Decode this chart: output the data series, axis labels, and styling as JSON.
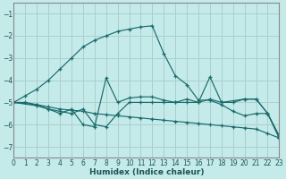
{
  "xlabel": "Humidex (Indice chaleur)",
  "bg_color": "#c5eaea",
  "grid_color": "#aacfcf",
  "line_color": "#1a6b6b",
  "xlim": [
    0,
    23
  ],
  "ylim": [
    -7.5,
    -0.5
  ],
  "yticks": [
    -7,
    -6,
    -5,
    -4,
    -3,
    -2,
    -1
  ],
  "xticks": [
    0,
    1,
    2,
    3,
    4,
    5,
    6,
    7,
    8,
    9,
    10,
    11,
    12,
    13,
    14,
    15,
    16,
    17,
    18,
    19,
    20,
    21,
    22,
    23
  ],
  "curve1_x": [
    0,
    1,
    2,
    3,
    4,
    5,
    6,
    7,
    8,
    9,
    10,
    11,
    12,
    13,
    14,
    15,
    16,
    17,
    18,
    19,
    20,
    21,
    22,
    23
  ],
  "curve1_y": [
    -5.0,
    -4.7,
    -4.4,
    -4.0,
    -3.5,
    -3.0,
    -2.5,
    -2.2,
    -2.0,
    -1.8,
    -1.7,
    -1.6,
    -1.55,
    -2.8,
    -3.8,
    -4.2,
    -4.9,
    -4.9,
    -5.1,
    -5.4,
    -5.6,
    -5.5,
    -5.5,
    -6.5
  ],
  "curve2_x": [
    0,
    1,
    2,
    3,
    4,
    5,
    6,
    7,
    8,
    9,
    10,
    11,
    12,
    13,
    14,
    15,
    16,
    17,
    18,
    19,
    20,
    21,
    22,
    23
  ],
  "curve2_y": [
    -5.0,
    -5.0,
    -5.1,
    -5.2,
    -5.3,
    -5.35,
    -5.4,
    -5.5,
    -5.55,
    -5.6,
    -5.65,
    -5.7,
    -5.75,
    -5.8,
    -5.85,
    -5.9,
    -5.95,
    -6.0,
    -6.05,
    -6.1,
    -6.15,
    -6.2,
    -6.4,
    -6.6
  ],
  "curve3_x": [
    0,
    2,
    3,
    4,
    5,
    6,
    7,
    8,
    9,
    10,
    11,
    12,
    13,
    14,
    15,
    16,
    17,
    18,
    19,
    20,
    21,
    22,
    23
  ],
  "curve3_y": [
    -5.0,
    -5.1,
    -5.3,
    -5.4,
    -5.5,
    -5.3,
    -6.0,
    -6.1,
    -5.5,
    -5.0,
    -5.0,
    -5.0,
    -5.0,
    -5.0,
    -5.0,
    -5.0,
    -4.85,
    -5.0,
    -5.0,
    -4.85,
    -4.85,
    -5.5,
    -6.6
  ],
  "curve4_x": [
    0,
    2,
    3,
    4,
    5,
    6,
    7,
    8,
    9,
    10,
    11,
    12,
    13,
    14,
    15,
    16,
    17,
    18,
    20,
    21,
    22,
    23
  ],
  "curve4_y": [
    -5.0,
    -5.15,
    -5.3,
    -5.5,
    -5.3,
    -6.0,
    -6.1,
    -3.9,
    -5.0,
    -4.8,
    -4.75,
    -4.75,
    -4.9,
    -5.0,
    -4.85,
    -5.0,
    -3.85,
    -5.0,
    -4.85,
    -4.85,
    -5.5,
    -6.6
  ]
}
